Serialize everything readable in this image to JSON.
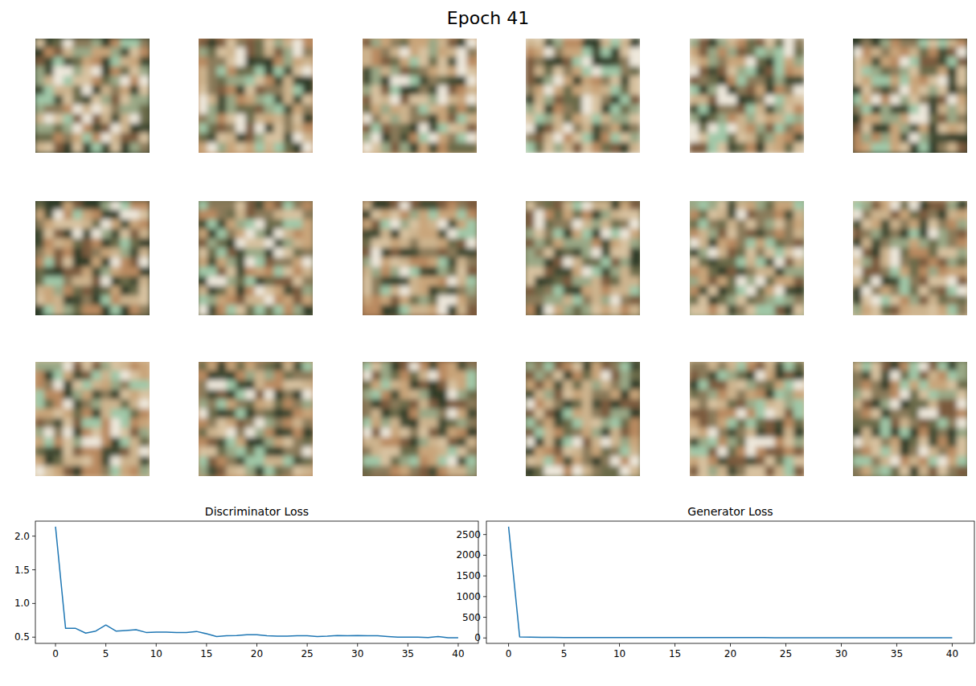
{
  "figure": {
    "title": "Epoch 41"
  },
  "chart_data": [
    {
      "type": "line",
      "title": "Discriminator Loss",
      "color": "#1f77b4",
      "x": [
        0,
        1,
        2,
        3,
        4,
        5,
        6,
        7,
        8,
        9,
        10,
        11,
        12,
        13,
        14,
        15,
        16,
        17,
        18,
        19,
        20,
        21,
        22,
        23,
        24,
        25,
        26,
        27,
        28,
        29,
        30,
        31,
        32,
        33,
        34,
        35,
        36,
        37,
        38,
        39,
        40
      ],
      "values": [
        2.14,
        0.63,
        0.63,
        0.56,
        0.59,
        0.68,
        0.59,
        0.6,
        0.61,
        0.57,
        0.575,
        0.575,
        0.57,
        0.57,
        0.585,
        0.55,
        0.51,
        0.52,
        0.525,
        0.535,
        0.535,
        0.52,
        0.515,
        0.515,
        0.52,
        0.52,
        0.51,
        0.515,
        0.525,
        0.52,
        0.525,
        0.52,
        0.52,
        0.51,
        0.5,
        0.5,
        0.5,
        0.495,
        0.51,
        0.49,
        0.49
      ],
      "xlim": [
        -2,
        42
      ],
      "ylim": [
        0.4075,
        2.2225
      ],
      "xticks": [
        0,
        5,
        10,
        15,
        20,
        25,
        30,
        35,
        40
      ],
      "yticks": [
        0.5,
        {
          "value": 1,
          "label": "1.0"
        },
        1.5,
        {
          "value": 2,
          "label": "2.0"
        }
      ]
    },
    {
      "type": "line",
      "title": "Generator Loss",
      "color": "#1f77b4",
      "x": [
        0,
        1,
        2,
        3,
        4,
        5,
        6,
        7,
        8,
        9,
        10,
        11,
        12,
        13,
        14,
        15,
        16,
        17,
        18,
        19,
        20,
        21,
        22,
        23,
        24,
        25,
        26,
        27,
        28,
        29,
        30,
        31,
        32,
        33,
        34,
        35,
        36,
        37,
        38,
        39,
        40
      ],
      "values": [
        2690,
        25,
        18,
        15,
        13,
        12,
        11,
        11,
        10,
        10,
        10,
        9,
        9,
        9,
        9,
        9,
        10,
        9,
        8,
        8,
        8,
        8,
        8,
        8,
        7,
        7,
        7,
        7,
        7,
        7,
        7,
        7,
        7,
        7,
        6,
        6,
        6,
        6,
        6,
        6,
        6
      ],
      "xlim": [
        -2,
        42
      ],
      "ylim": [
        -131,
        2824
      ],
      "xticks": [
        0,
        5,
        10,
        15,
        20,
        25,
        30,
        35,
        40
      ],
      "yticks": [
        0,
        500,
        1000,
        1500,
        2000,
        2500
      ]
    }
  ]
}
